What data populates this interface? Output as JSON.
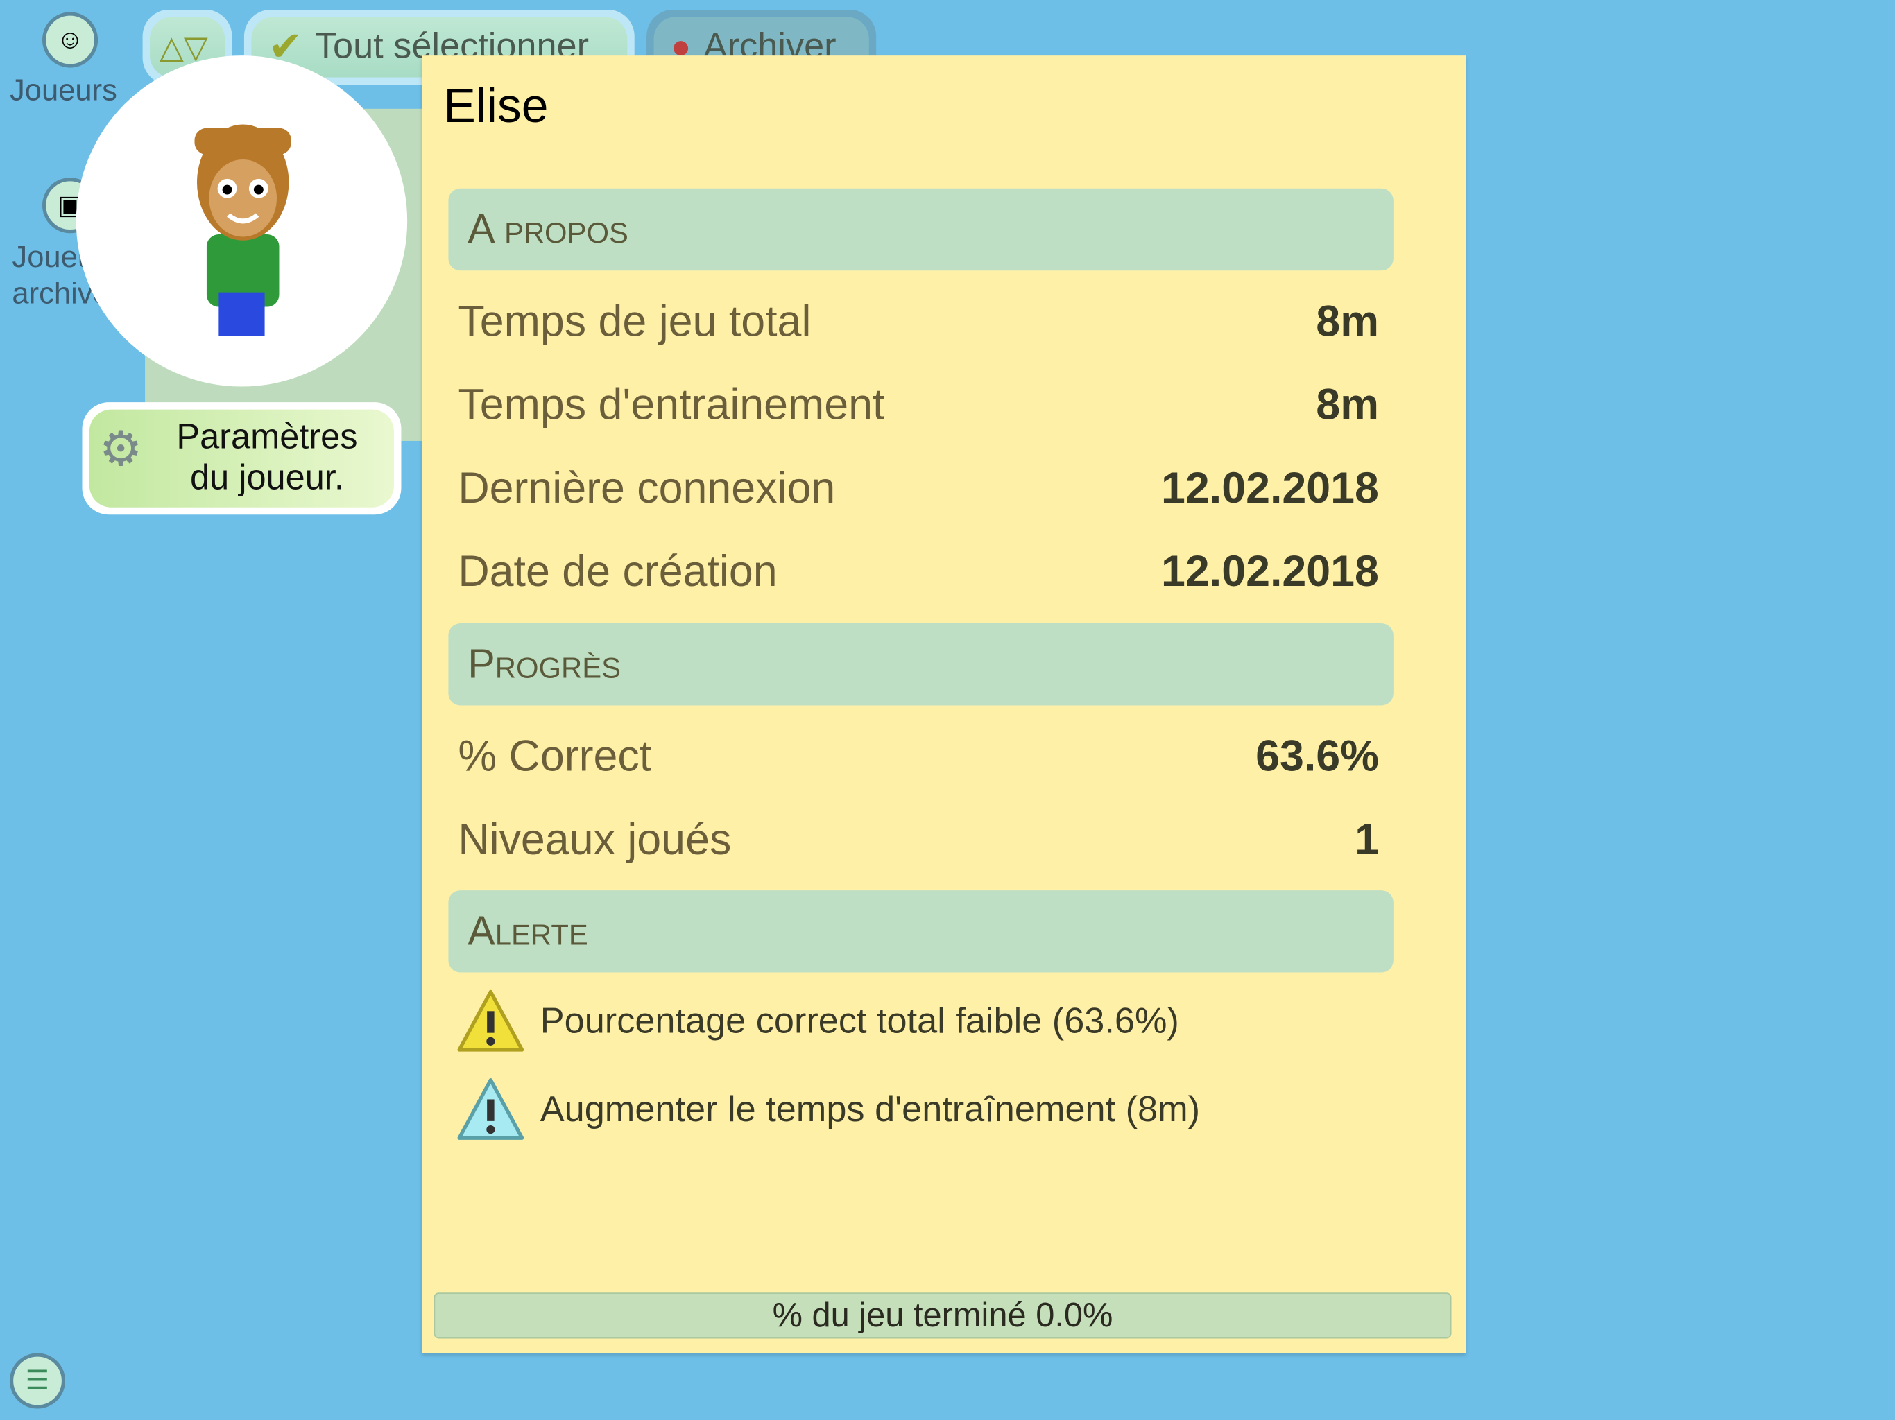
{
  "sidebar": {
    "items": [
      {
        "label": "Joueurs",
        "icon": "player-icon"
      },
      {
        "label": "Joueurs archivés",
        "icon": "archive-box-icon"
      }
    ],
    "menu_icon": "list-icon"
  },
  "toolbar": {
    "sort_icon": "sort-triangles-icon",
    "select_all": "Tout sélectionner",
    "archive": "Archiver"
  },
  "player_settings": {
    "label_line1": "Paramètres",
    "label_line2": "du joueur."
  },
  "player": {
    "name": "Elise",
    "about": {
      "header": "A propos",
      "rows": [
        {
          "label": "Temps de jeu total",
          "value": "8m"
        },
        {
          "label": "Temps d'entrainement",
          "value": "8m"
        },
        {
          "label": "Dernière connexion",
          "value": "12.02.2018"
        },
        {
          "label": "Date de création",
          "value": "12.02.2018"
        }
      ]
    },
    "progress": {
      "header": "Progrès",
      "rows": [
        {
          "label": "% Correct",
          "value": "63.6%"
        },
        {
          "label": "Niveaux joués",
          "value": "1"
        }
      ]
    },
    "alerts": {
      "header": "Alerte",
      "items": [
        {
          "text": "Pourcentage correct total faible (63.6%)",
          "color": "#f2e03a"
        },
        {
          "text": "Augmenter le temps d'entraînement (8m)",
          "color": "#a8eaf2"
        }
      ]
    },
    "completion": {
      "label": "% du jeu terminé 0.0%",
      "value": 0.0
    }
  }
}
